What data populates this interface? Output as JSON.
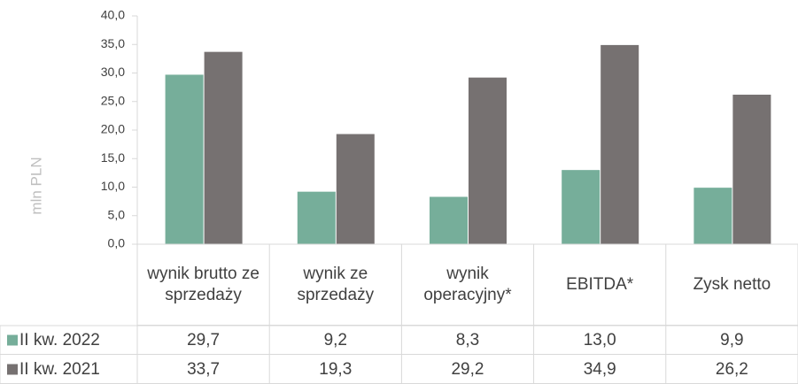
{
  "chart_data": {
    "type": "bar",
    "y_label": "mln PLN",
    "categories": [
      "wynik brutto ze sprzedaży",
      "wynik ze sprzedaży",
      "wynik operacyjny*",
      "EBITDA*",
      "Zysk netto"
    ],
    "series": [
      {
        "name": "II kw. 2022",
        "color": "#76ae9a",
        "values": [
          29.7,
          9.2,
          8.3,
          13.0,
          9.9
        ],
        "value_labels": [
          "29,7",
          "9,2",
          "8,3",
          "13,0",
          "9,9"
        ]
      },
      {
        "name": "II kw. 2021",
        "color": "#767171",
        "values": [
          33.7,
          19.3,
          29.2,
          34.9,
          26.2
        ],
        "value_labels": [
          "33,7",
          "19,3",
          "29,2",
          "34,9",
          "26,2"
        ]
      }
    ],
    "ylim": [
      0,
      40
    ],
    "yticks": [
      {
        "value": 0,
        "label": "0,0"
      },
      {
        "value": 5,
        "label": "5,0"
      },
      {
        "value": 10,
        "label": "10,0"
      },
      {
        "value": 15,
        "label": "15,0"
      },
      {
        "value": 20,
        "label": "20,0"
      },
      {
        "value": 25,
        "label": "25,0"
      },
      {
        "value": 30,
        "label": "30,0"
      },
      {
        "value": 35,
        "label": "35,0"
      },
      {
        "value": 40,
        "label": "40,0"
      }
    ],
    "grid": false
  }
}
